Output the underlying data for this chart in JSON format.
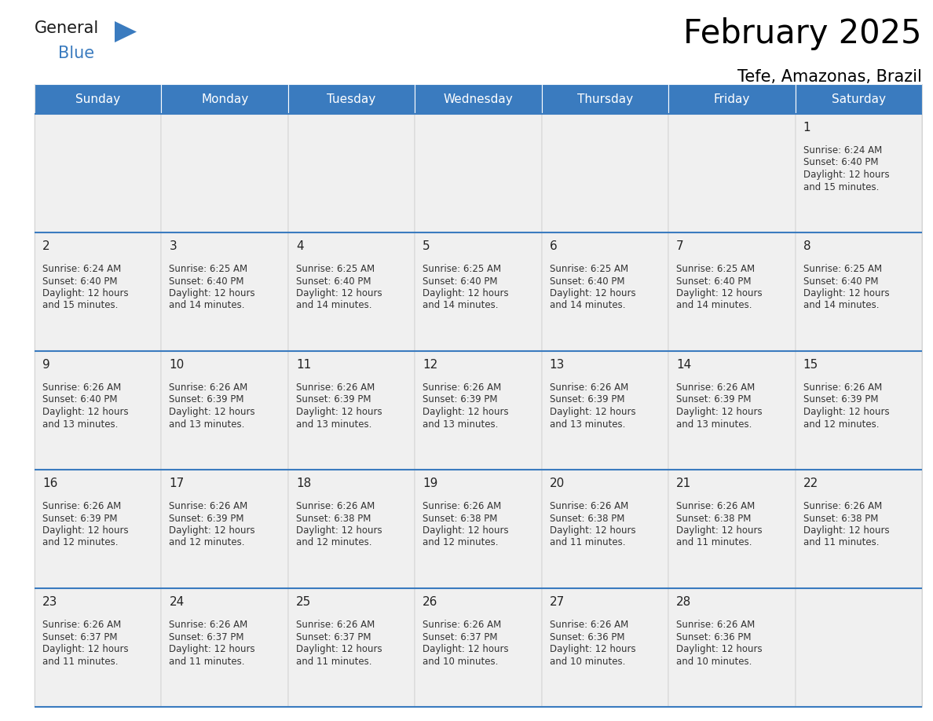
{
  "title": "February 2025",
  "subtitle": "Tefe, Amazonas, Brazil",
  "days_of_week": [
    "Sunday",
    "Monday",
    "Tuesday",
    "Wednesday",
    "Thursday",
    "Friday",
    "Saturday"
  ],
  "header_bg": "#3a7bbf",
  "header_text": "#ffffff",
  "cell_bg": "#f0f0f0",
  "divider_color": "#3a7bbf",
  "border_color": "#cccccc",
  "text_color": "#333333",
  "day_number_color": "#222222",
  "logo_general_color": "#1a1a1a",
  "logo_blue_color": "#3a7bbf",
  "logo_triangle_color": "#3a7bbf",
  "calendar_data": [
    [
      null,
      null,
      null,
      null,
      null,
      null,
      {
        "day": 1,
        "sunrise": "6:24 AM",
        "sunset": "6:40 PM",
        "daylight_line1": "Daylight: 12 hours",
        "daylight_line2": "and 15 minutes."
      }
    ],
    [
      {
        "day": 2,
        "sunrise": "6:24 AM",
        "sunset": "6:40 PM",
        "daylight_line1": "Daylight: 12 hours",
        "daylight_line2": "and 15 minutes."
      },
      {
        "day": 3,
        "sunrise": "6:25 AM",
        "sunset": "6:40 PM",
        "daylight_line1": "Daylight: 12 hours",
        "daylight_line2": "and 14 minutes."
      },
      {
        "day": 4,
        "sunrise": "6:25 AM",
        "sunset": "6:40 PM",
        "daylight_line1": "Daylight: 12 hours",
        "daylight_line2": "and 14 minutes."
      },
      {
        "day": 5,
        "sunrise": "6:25 AM",
        "sunset": "6:40 PM",
        "daylight_line1": "Daylight: 12 hours",
        "daylight_line2": "and 14 minutes."
      },
      {
        "day": 6,
        "sunrise": "6:25 AM",
        "sunset": "6:40 PM",
        "daylight_line1": "Daylight: 12 hours",
        "daylight_line2": "and 14 minutes."
      },
      {
        "day": 7,
        "sunrise": "6:25 AM",
        "sunset": "6:40 PM",
        "daylight_line1": "Daylight: 12 hours",
        "daylight_line2": "and 14 minutes."
      },
      {
        "day": 8,
        "sunrise": "6:25 AM",
        "sunset": "6:40 PM",
        "daylight_line1": "Daylight: 12 hours",
        "daylight_line2": "and 14 minutes."
      }
    ],
    [
      {
        "day": 9,
        "sunrise": "6:26 AM",
        "sunset": "6:40 PM",
        "daylight_line1": "Daylight: 12 hours",
        "daylight_line2": "and 13 minutes."
      },
      {
        "day": 10,
        "sunrise": "6:26 AM",
        "sunset": "6:39 PM",
        "daylight_line1": "Daylight: 12 hours",
        "daylight_line2": "and 13 minutes."
      },
      {
        "day": 11,
        "sunrise": "6:26 AM",
        "sunset": "6:39 PM",
        "daylight_line1": "Daylight: 12 hours",
        "daylight_line2": "and 13 minutes."
      },
      {
        "day": 12,
        "sunrise": "6:26 AM",
        "sunset": "6:39 PM",
        "daylight_line1": "Daylight: 12 hours",
        "daylight_line2": "and 13 minutes."
      },
      {
        "day": 13,
        "sunrise": "6:26 AM",
        "sunset": "6:39 PM",
        "daylight_line1": "Daylight: 12 hours",
        "daylight_line2": "and 13 minutes."
      },
      {
        "day": 14,
        "sunrise": "6:26 AM",
        "sunset": "6:39 PM",
        "daylight_line1": "Daylight: 12 hours",
        "daylight_line2": "and 13 minutes."
      },
      {
        "day": 15,
        "sunrise": "6:26 AM",
        "sunset": "6:39 PM",
        "daylight_line1": "Daylight: 12 hours",
        "daylight_line2": "and 12 minutes."
      }
    ],
    [
      {
        "day": 16,
        "sunrise": "6:26 AM",
        "sunset": "6:39 PM",
        "daylight_line1": "Daylight: 12 hours",
        "daylight_line2": "and 12 minutes."
      },
      {
        "day": 17,
        "sunrise": "6:26 AM",
        "sunset": "6:39 PM",
        "daylight_line1": "Daylight: 12 hours",
        "daylight_line2": "and 12 minutes."
      },
      {
        "day": 18,
        "sunrise": "6:26 AM",
        "sunset": "6:38 PM",
        "daylight_line1": "Daylight: 12 hours",
        "daylight_line2": "and 12 minutes."
      },
      {
        "day": 19,
        "sunrise": "6:26 AM",
        "sunset": "6:38 PM",
        "daylight_line1": "Daylight: 12 hours",
        "daylight_line2": "and 12 minutes."
      },
      {
        "day": 20,
        "sunrise": "6:26 AM",
        "sunset": "6:38 PM",
        "daylight_line1": "Daylight: 12 hours",
        "daylight_line2": "and 11 minutes."
      },
      {
        "day": 21,
        "sunrise": "6:26 AM",
        "sunset": "6:38 PM",
        "daylight_line1": "Daylight: 12 hours",
        "daylight_line2": "and 11 minutes."
      },
      {
        "day": 22,
        "sunrise": "6:26 AM",
        "sunset": "6:38 PM",
        "daylight_line1": "Daylight: 12 hours",
        "daylight_line2": "and 11 minutes."
      }
    ],
    [
      {
        "day": 23,
        "sunrise": "6:26 AM",
        "sunset": "6:37 PM",
        "daylight_line1": "Daylight: 12 hours",
        "daylight_line2": "and 11 minutes."
      },
      {
        "day": 24,
        "sunrise": "6:26 AM",
        "sunset": "6:37 PM",
        "daylight_line1": "Daylight: 12 hours",
        "daylight_line2": "and 11 minutes."
      },
      {
        "day": 25,
        "sunrise": "6:26 AM",
        "sunset": "6:37 PM",
        "daylight_line1": "Daylight: 12 hours",
        "daylight_line2": "and 11 minutes."
      },
      {
        "day": 26,
        "sunrise": "6:26 AM",
        "sunset": "6:37 PM",
        "daylight_line1": "Daylight: 12 hours",
        "daylight_line2": "and 10 minutes."
      },
      {
        "day": 27,
        "sunrise": "6:26 AM",
        "sunset": "6:36 PM",
        "daylight_line1": "Daylight: 12 hours",
        "daylight_line2": "and 10 minutes."
      },
      {
        "day": 28,
        "sunrise": "6:26 AM",
        "sunset": "6:36 PM",
        "daylight_line1": "Daylight: 12 hours",
        "daylight_line2": "and 10 minutes."
      },
      null
    ]
  ]
}
